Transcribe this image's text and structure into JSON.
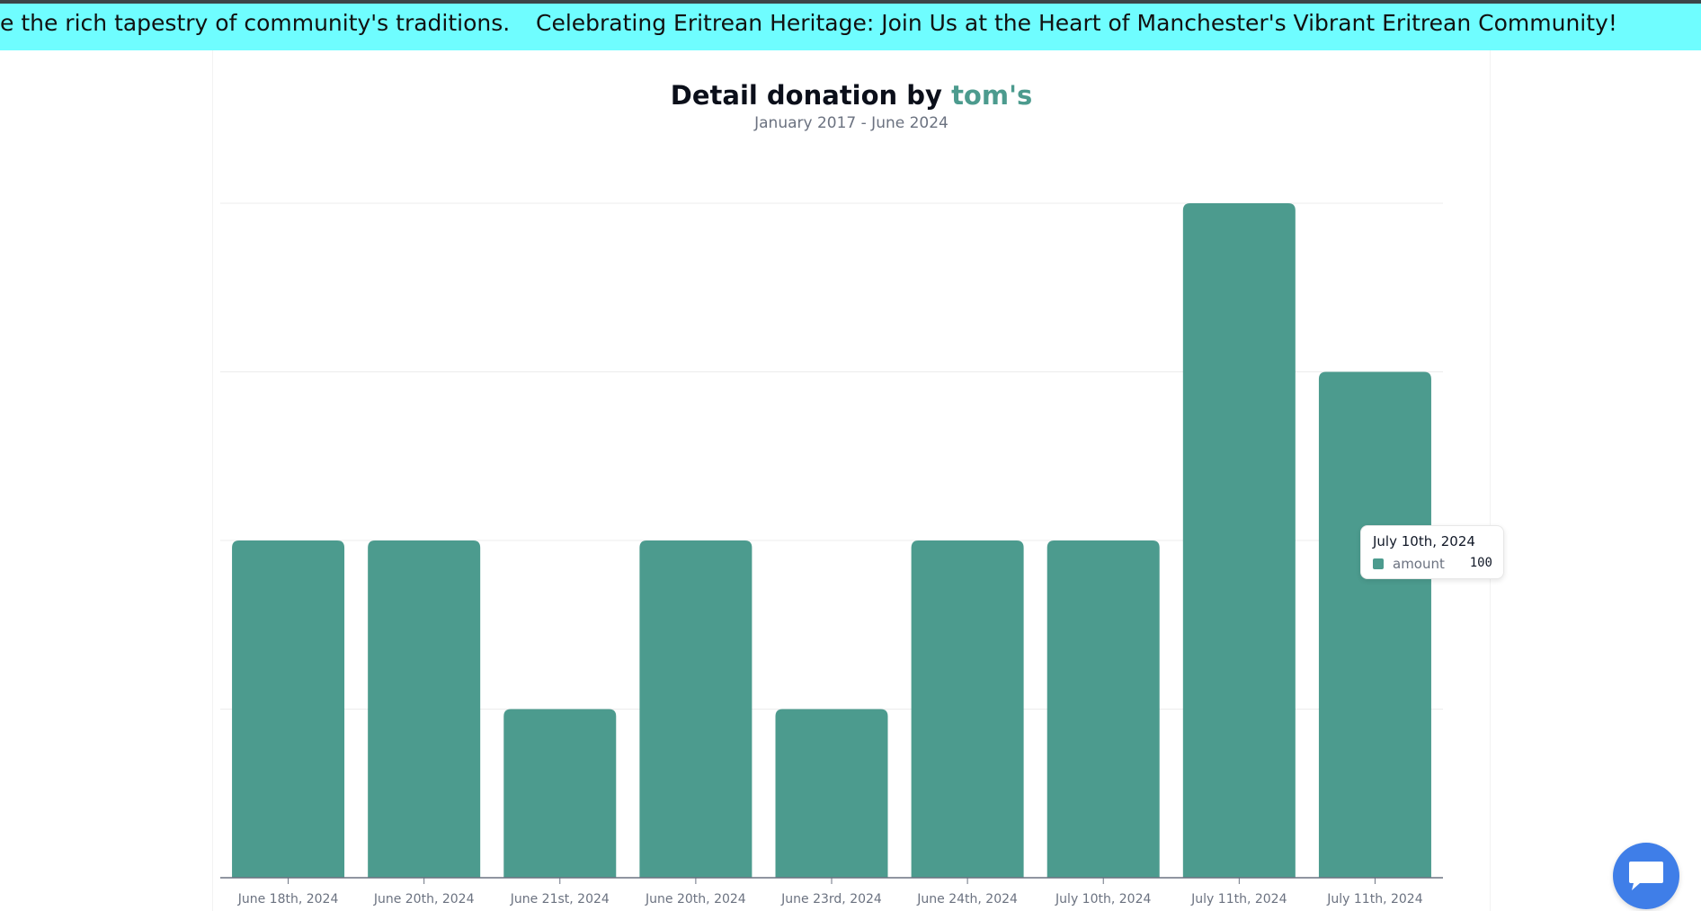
{
  "banner": {
    "text_fragment": "e the rich tapestry of community's traditions.",
    "headline": "Celebrating Eritrean Heritage: Join Us at the Heart of Manchester's Vibrant Eritrean Community!"
  },
  "chart_header": {
    "title_prefix": "Detail donation by",
    "title_name": "tom's",
    "subtitle": "January 2017 - June 2024"
  },
  "tooltip": {
    "title": "July 10th, 2024",
    "series_label": "amount",
    "value": "100"
  },
  "chat": {
    "icon": "chat-bubble-icon"
  },
  "colors": {
    "banner_bg": "#6ffdff",
    "bar": "#4c9b8e",
    "accent": "#4c9b8e",
    "chat_button": "#3f7ee8"
  },
  "chart_data": {
    "type": "bar",
    "title": "Detail donation by tom's",
    "subtitle": "January 2017 - June 2024",
    "categories": [
      "June 18th, 2024",
      "June 20th, 2024",
      "June 21st, 2024",
      "June 20th, 2024",
      "June 23rd, 2024",
      "June 24th, 2024",
      "July 10th, 2024",
      "July 11th, 2024",
      "July 11th, 2024"
    ],
    "series": [
      {
        "name": "amount",
        "values": [
          100,
          100,
          50,
          100,
          50,
          100,
          100,
          200,
          150
        ]
      }
    ],
    "ylim": [
      0,
      200
    ],
    "grid": true,
    "legend": "none"
  }
}
